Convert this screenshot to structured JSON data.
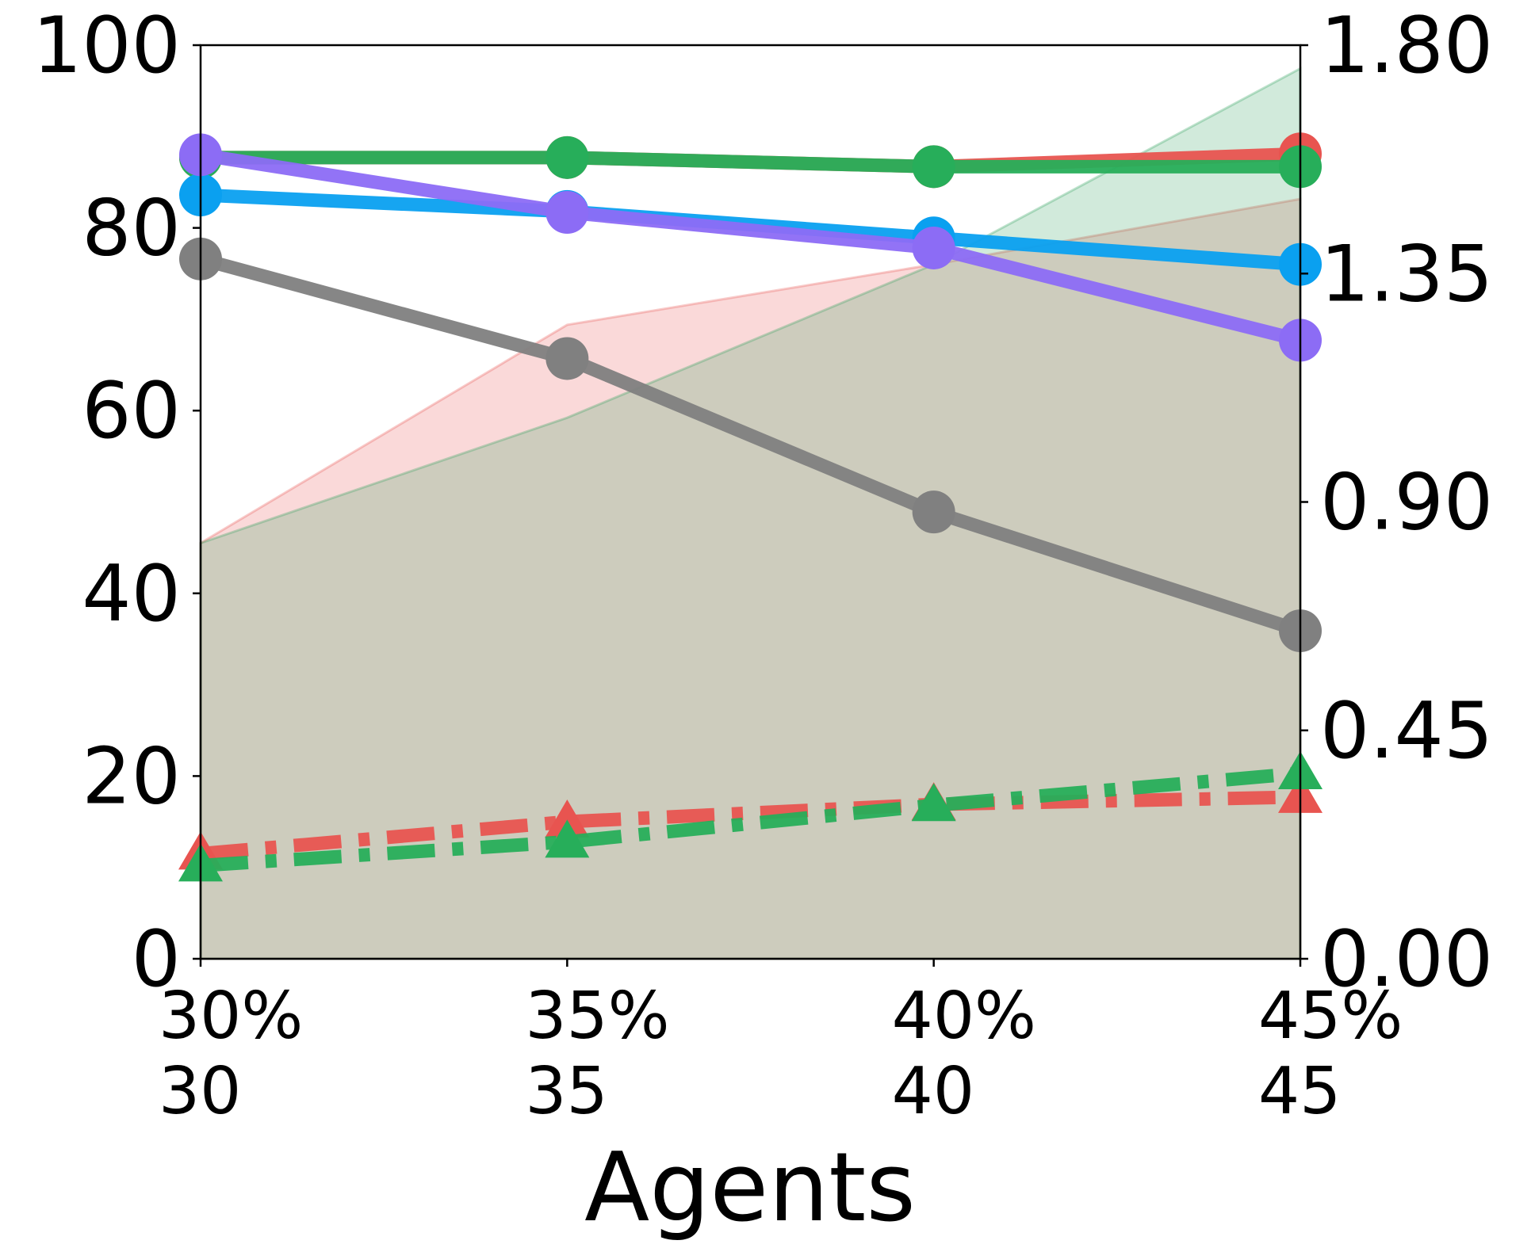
{
  "chart_data": {
    "type": "line",
    "x_label": "Agents",
    "x": [
      30,
      35,
      40,
      45
    ],
    "xlim": [
      30,
      45
    ],
    "xticks": [
      {
        "value": 30,
        "labels": [
          "30%",
          "30"
        ]
      },
      {
        "value": 35,
        "labels": [
          "35%",
          "35"
        ]
      },
      {
        "value": 40,
        "labels": [
          "40%",
          "40"
        ]
      },
      {
        "value": 45,
        "labels": [
          "45%",
          "45"
        ]
      }
    ],
    "ylim": [
      0,
      100
    ],
    "yticks": [
      0,
      20,
      40,
      60,
      80,
      100
    ],
    "y2lim": [
      0,
      1.8
    ],
    "y2ticks": [
      {
        "value": 0,
        "label": "0.00"
      },
      {
        "value": 0.45,
        "label": "0.45"
      },
      {
        "value": 0.9,
        "label": "0.90"
      },
      {
        "value": 1.35,
        "label": "1.35"
      },
      {
        "value": 1.8,
        "label": "1.80"
      }
    ],
    "series": [
      {
        "kind": "area",
        "axis": "y2",
        "color": "#e85450",
        "values": [
          0.819,
          1.249,
          1.368,
          1.497
        ]
      },
      {
        "kind": "area",
        "axis": "y2",
        "color": "#2ca05a",
        "values": [
          0.819,
          1.066,
          1.368,
          1.754
        ]
      },
      {
        "kind": "line",
        "color": "#e85450",
        "marker": "circle",
        "values": [
          87.7,
          87.7,
          86.7,
          88.1
        ]
      },
      {
        "kind": "line",
        "color": "#27ae5a",
        "marker": "circle",
        "values": [
          87.7,
          87.7,
          86.7,
          86.7
        ]
      },
      {
        "kind": "line",
        "color": "#0aa0f0",
        "marker": "circle",
        "values": [
          83.6,
          81.8,
          78.9,
          76.0
        ]
      },
      {
        "kind": "line",
        "color": "#8c6cf5",
        "marker": "circle",
        "values": [
          88.0,
          81.7,
          77.8,
          67.7
        ]
      },
      {
        "kind": "line",
        "color": "#808080",
        "marker": "circle",
        "values": [
          76.6,
          65.7,
          48.9,
          35.9
        ]
      },
      {
        "kind": "line",
        "color": "#e85450",
        "marker": "triangle",
        "dash": true,
        "values": [
          11.5,
          15.0,
          16.9,
          17.7
        ]
      },
      {
        "kind": "line",
        "color": "#27ae5a",
        "marker": "triangle",
        "dash": true,
        "values": [
          10.2,
          12.8,
          16.8,
          20.3
        ]
      }
    ]
  }
}
